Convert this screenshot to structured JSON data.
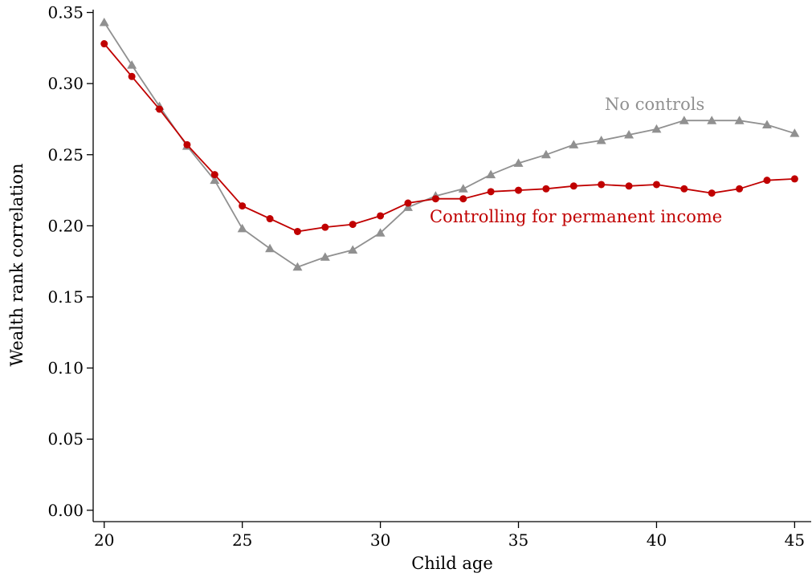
{
  "chart_data": {
    "type": "line",
    "title": "",
    "xlabel": "Child age",
    "ylabel": "Wealth rank correlation",
    "xlim": [
      19.6,
      45.6
    ],
    "ylim": [
      -0.008,
      0.352
    ],
    "xticks": [
      20,
      25,
      30,
      35,
      40,
      45
    ],
    "yticks": [
      0.0,
      0.05,
      0.1,
      0.15,
      0.2,
      0.25,
      0.3,
      0.35
    ],
    "ytick_labels": [
      "0.00",
      "0.05",
      "0.10",
      "0.15",
      "0.20",
      "0.25",
      "0.30",
      "0.35"
    ],
    "grid": false,
    "legend": "inline labels",
    "x": [
      20,
      21,
      22,
      23,
      24,
      25,
      26,
      27,
      28,
      29,
      30,
      31,
      32,
      33,
      34,
      35,
      36,
      37,
      38,
      39,
      40,
      41,
      42,
      43,
      44,
      45
    ],
    "series": [
      {
        "name": "No controls",
        "color": "#909090",
        "marker": "triangle",
        "values": [
          0.343,
          0.313,
          0.284,
          0.256,
          0.232,
          0.198,
          0.184,
          0.171,
          0.178,
          0.183,
          0.195,
          0.213,
          0.221,
          0.226,
          0.236,
          0.244,
          0.25,
          0.257,
          0.26,
          0.264,
          0.268,
          0.274,
          0.274,
          0.274,
          0.271,
          0.265
        ]
      },
      {
        "name": "Controlling for permanent income",
        "color": "#c00000",
        "marker": "circle",
        "values": [
          0.328,
          0.305,
          0.282,
          0.257,
          0.236,
          0.214,
          0.205,
          0.196,
          0.199,
          0.201,
          0.207,
          0.216,
          0.219,
          0.219,
          0.224,
          0.225,
          0.226,
          0.228,
          0.229,
          0.228,
          0.229,
          0.226,
          0.223,
          0.226,
          0.232,
          0.233
        ]
      }
    ]
  }
}
